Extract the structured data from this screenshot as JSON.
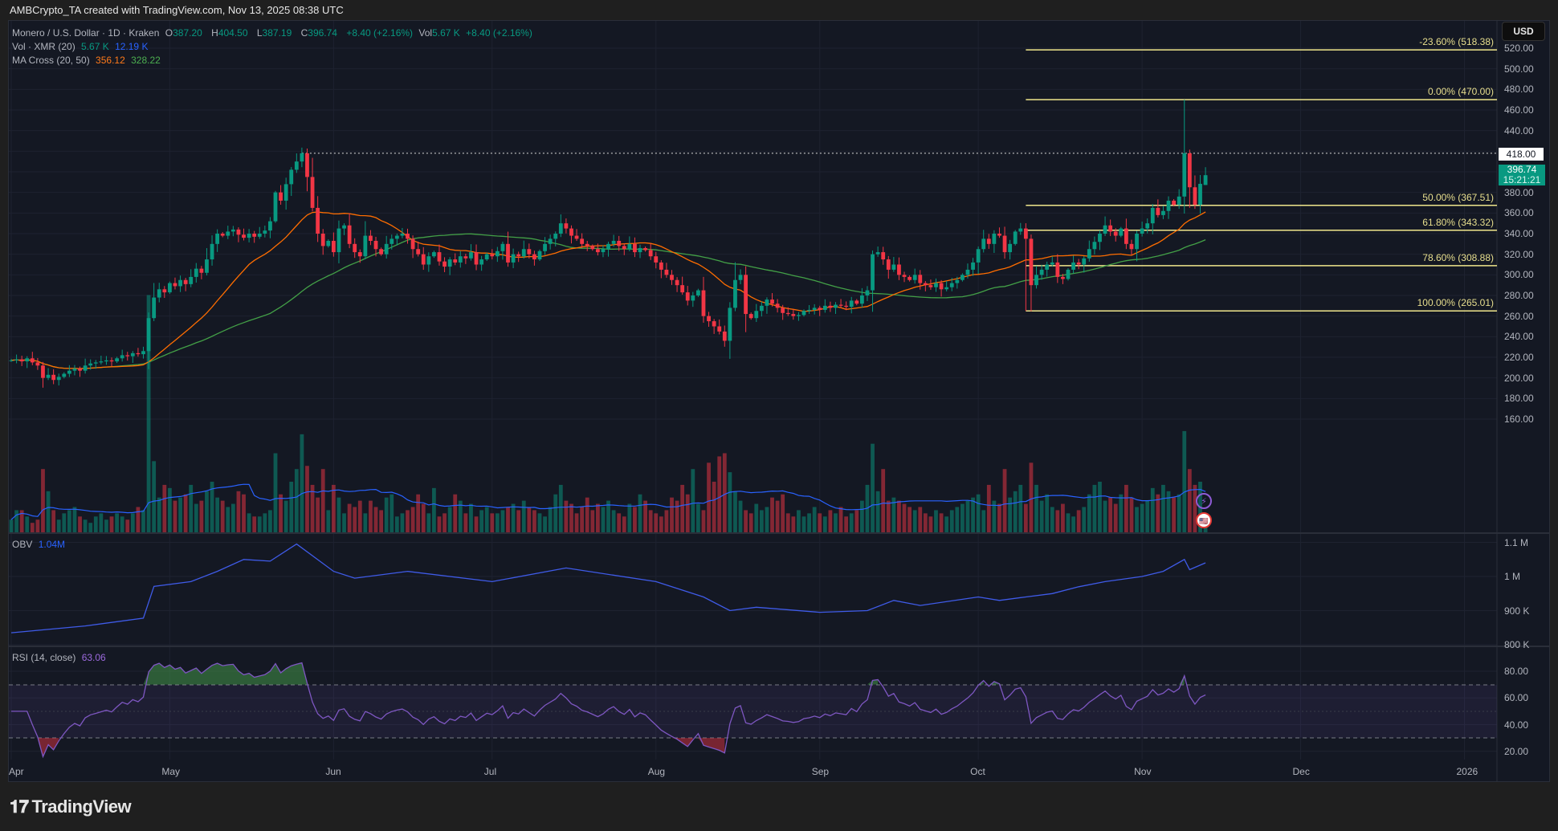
{
  "page_title": "AMBCrypto_TA created with TradingView.com, Nov 13, 2025 08:38 UTC",
  "legend": {
    "symbol": "Monero / U.S. Dollar · 1D · Kraken",
    "o_label": "O",
    "o": "387.20",
    "h_label": "H",
    "h": "404.50",
    "l_label": "L",
    "l": "387.19",
    "c_label": "C",
    "c": "396.74",
    "change": "+8.40 (+2.16%)",
    "vol_label": "Vol",
    "vol": "5.67 K",
    "vol_change": "+8.40 (+2.16%)",
    "vol_ind": "Vol · XMR (20)",
    "vol_val": "5.67 K",
    "vol_ma": "12.19 K",
    "ma_ind": "MA Cross (20, 50)",
    "ma20": "356.12",
    "ma50": "328.22",
    "obv_ind": "OBV",
    "obv_val": "1.04M",
    "rsi_ind": "RSI (14, close)",
    "rsi_val": "63.06"
  },
  "currency_button": "USD",
  "price_tags": {
    "dotted_level": "418.00",
    "current_price": "396.74",
    "countdown": "15:21:21"
  },
  "footer_brand": "TradingView",
  "colors": {
    "up": "#089981",
    "down": "#f23645",
    "ma20": "#ff6d00",
    "ma50": "#43a047",
    "vol_ma": "#2962ff",
    "obv": "#3f5be8",
    "rsi": "#7e57c2",
    "fib": "#f0e68c",
    "background": "#141823"
  },
  "chart_data": {
    "type": "candlestick",
    "title": "Monero / U.S. Dollar · 1D · Kraken",
    "start_date": "2025-04-01",
    "interval": "1D",
    "price_axis": {
      "ticks": [
        "520.00",
        "500.00",
        "480.00",
        "460.00",
        "440.00",
        "420.00",
        "400.00",
        "380.00",
        "360.00",
        "340.00",
        "320.00",
        "300.00",
        "280.00",
        "260.00",
        "240.00",
        "220.00",
        "200.00",
        "180.00",
        "160.00"
      ],
      "ylim": [
        150,
        530
      ]
    },
    "time_axis": {
      "ticks": [
        {
          "label": "Apr",
          "date": "2025-04-01"
        },
        {
          "label": "May",
          "date": "2025-05-01"
        },
        {
          "label": "Jun",
          "date": "2025-06-01"
        },
        {
          "label": "Jul",
          "date": "2025-07-01"
        },
        {
          "label": "Aug",
          "date": "2025-08-01"
        },
        {
          "label": "Sep",
          "date": "2025-09-01"
        },
        {
          "label": "Oct",
          "date": "2025-10-01"
        },
        {
          "label": "Nov",
          "date": "2025-11-01"
        },
        {
          "label": "Dec",
          "date": "2025-12-01"
        },
        {
          "label": "2026",
          "date": "2026-01-01"
        }
      ]
    },
    "close": [
      217,
      218,
      216,
      219,
      215,
      212,
      200,
      203,
      198,
      201,
      204,
      207,
      209,
      207,
      212,
      214,
      215,
      216,
      217,
      216,
      219,
      222,
      221,
      224,
      223,
      226,
      258,
      278,
      286,
      283,
      292,
      289,
      295,
      291,
      298,
      306,
      302,
      315,
      330,
      340,
      338,
      342,
      344,
      339,
      336,
      340,
      337,
      340,
      343,
      352,
      380,
      372,
      388,
      402,
      410,
      418,
      395,
      365,
      340,
      328,
      333,
      322,
      345,
      348,
      330,
      322,
      318,
      338,
      333,
      325,
      320,
      330,
      335,
      338,
      340,
      335,
      325,
      320,
      310,
      318,
      322,
      313,
      308,
      315,
      312,
      318,
      316,
      322,
      310,
      315,
      320,
      318,
      323,
      330,
      312,
      320,
      318,
      325,
      320,
      315,
      323,
      330,
      335,
      340,
      350,
      345,
      338,
      335,
      330,
      328,
      325,
      322,
      325,
      330,
      333,
      328,
      325,
      330,
      322,
      326,
      324,
      318,
      312,
      305,
      300,
      295,
      290,
      283,
      275,
      280,
      285,
      260,
      255,
      250,
      245,
      236,
      268,
      295,
      300,
      262,
      258,
      265,
      270,
      276,
      272,
      268,
      263,
      262,
      260,
      261,
      265,
      266,
      268,
      266,
      270,
      268,
      271,
      270,
      269,
      275,
      272,
      280,
      285,
      320,
      322,
      315,
      305,
      310,
      300,
      298,
      295,
      300,
      292,
      290,
      288,
      292,
      286,
      288,
      292,
      295,
      300,
      305,
      312,
      325,
      335,
      330,
      340,
      338,
      322,
      330,
      342,
      345,
      335,
      290,
      300,
      305,
      310,
      312,
      298,
      296,
      305,
      312,
      310,
      316,
      325,
      332,
      340,
      348,
      342,
      338,
      345,
      330,
      325,
      340,
      345,
      350,
      365,
      358,
      362,
      372,
      368,
      376,
      418,
      385,
      368,
      388.34,
      396.74
    ],
    "volume_k": [
      8,
      14,
      14,
      10,
      6,
      8,
      40,
      26,
      14,
      8,
      12,
      14,
      16,
      10,
      8,
      6,
      10,
      12,
      8,
      10,
      12,
      10,
      8,
      12,
      16,
      14,
      150,
      45,
      22,
      30,
      28,
      20,
      22,
      24,
      30,
      18,
      20,
      26,
      32,
      22,
      20,
      16,
      18,
      26,
      24,
      12,
      10,
      10,
      12,
      14,
      50,
      24,
      20,
      32,
      40,
      62,
      42,
      30,
      22,
      40,
      14,
      30,
      22,
      12,
      18,
      16,
      20,
      12,
      20,
      16,
      14,
      22,
      24,
      10,
      12,
      14,
      16,
      24,
      18,
      12,
      28,
      10,
      12,
      16,
      24,
      20,
      12,
      18,
      10,
      14,
      16,
      12,
      12,
      14,
      16,
      18,
      14,
      20,
      16,
      14,
      12,
      10,
      16,
      24,
      30,
      20,
      18,
      12,
      16,
      22,
      14,
      18,
      16,
      20,
      14,
      12,
      10,
      18,
      16,
      24,
      20,
      14,
      12,
      10,
      14,
      22,
      20,
      30,
      24,
      40,
      18,
      14,
      44,
      32,
      48,
      50,
      38,
      26,
      20,
      14,
      12,
      18,
      14,
      16,
      22,
      20,
      24,
      12,
      10,
      14,
      10,
      12,
      16,
      12,
      10,
      14,
      12,
      16,
      10,
      12,
      14,
      20,
      30,
      56,
      26,
      40,
      20,
      22,
      20,
      18,
      16,
      14,
      16,
      12,
      10,
      14,
      12,
      10,
      14,
      16,
      18,
      20,
      22,
      24,
      14,
      30,
      20,
      18,
      40,
      22,
      26,
      30,
      18,
      44,
      30,
      20,
      24,
      16,
      14,
      18,
      12,
      10,
      14,
      16,
      24,
      30,
      32,
      20,
      22,
      18,
      24,
      30,
      22,
      16,
      18,
      20,
      28,
      24,
      30,
      26,
      22,
      24,
      64,
      40,
      30,
      32,
      5.67
    ],
    "wick_overrides": [
      {
        "date": "2025-11-09",
        "high": 470.0
      },
      {
        "date": "2025-10-10",
        "low": 265.01
      },
      {
        "date": "2025-11-13",
        "open": 387.2,
        "high": 404.5,
        "low": 387.19,
        "close": 396.74
      }
    ],
    "moving_averages": [
      {
        "name": "MA 20",
        "period": 20,
        "last": 356.12
      },
      {
        "name": "MA 50",
        "period": 50,
        "last": 328.22
      }
    ],
    "volume_ma": {
      "period": 20,
      "last_k": 12.19
    },
    "fibonacci": [
      {
        "label": "-23.60% (518.38)",
        "price": 518.38
      },
      {
        "label": "0.00% (470.00)",
        "price": 470.0
      },
      {
        "label": "50.00% (367.51)",
        "price": 367.51
      },
      {
        "label": "61.80% (343.32)",
        "price": 343.32
      },
      {
        "label": "78.60% (308.88)",
        "price": 308.88
      },
      {
        "label": "100.00% (265.01)",
        "price": 265.01
      }
    ],
    "fib_start_date": "2025-10-10",
    "obv": {
      "axis_ticks": [
        "1.1 M",
        "1 M",
        "900 K",
        "800 K"
      ],
      "points_k": [
        [
          "2025-04-01",
          835
        ],
        [
          "2025-04-15",
          855
        ],
        [
          "2025-04-26",
          878
        ],
        [
          "2025-04-28",
          971
        ],
        [
          "2025-05-05",
          985
        ],
        [
          "2025-05-10",
          1015
        ],
        [
          "2025-05-15",
          1050
        ],
        [
          "2025-05-20",
          1045
        ],
        [
          "2025-05-25",
          1095
        ],
        [
          "2025-06-01",
          1015
        ],
        [
          "2025-06-05",
          995
        ],
        [
          "2025-06-15",
          1015
        ],
        [
          "2025-07-01",
          985
        ],
        [
          "2025-07-15",
          1025
        ],
        [
          "2025-08-01",
          985
        ],
        [
          "2025-08-10",
          940
        ],
        [
          "2025-08-15",
          900
        ],
        [
          "2025-08-20",
          910
        ],
        [
          "2025-09-01",
          895
        ],
        [
          "2025-09-10",
          900
        ],
        [
          "2025-09-15",
          930
        ],
        [
          "2025-09-20",
          915
        ],
        [
          "2025-10-01",
          940
        ],
        [
          "2025-10-05",
          930
        ],
        [
          "2025-10-10",
          940
        ],
        [
          "2025-10-15",
          950
        ],
        [
          "2025-10-20",
          970
        ],
        [
          "2025-10-25",
          985
        ],
        [
          "2025-11-01",
          1000
        ],
        [
          "2025-11-05",
          1015
        ],
        [
          "2025-11-09",
          1050
        ],
        [
          "2025-11-10",
          1020
        ],
        [
          "2025-11-13",
          1040
        ]
      ]
    },
    "rsi": {
      "period": 14,
      "axis_ticks": [
        "80.00",
        "60.00",
        "40.00",
        "20.00"
      ],
      "upper": 70,
      "lower": 30
    }
  }
}
